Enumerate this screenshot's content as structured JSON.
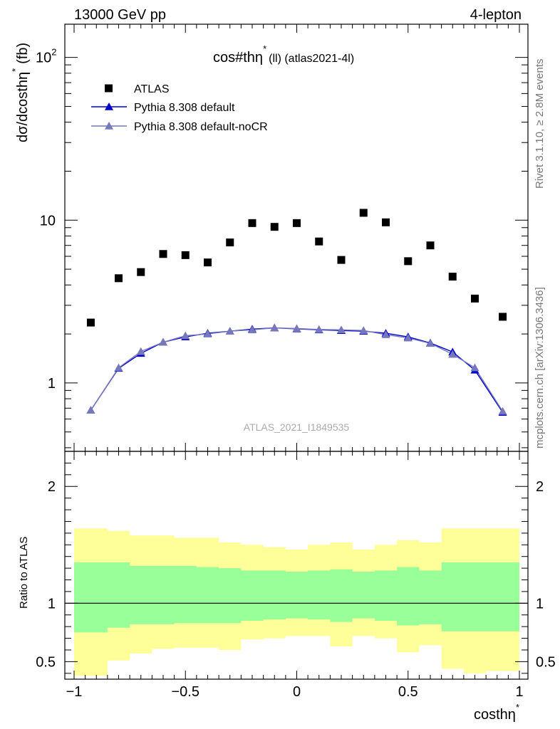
{
  "header": {
    "left": "13000 GeV pp",
    "right": "4-lepton"
  },
  "side_labels": {
    "rivet": "Rivet 3.1.10, ≥ 2.8M events",
    "mcplots": "mcplots.cern.ch [arXiv:1306.3436]"
  },
  "chart_data": [
    {
      "type": "scatter",
      "title_main": "cos#thη",
      "title_sup": "*",
      "title_tail": "(ll) (atlas2021-4l)",
      "ylabel_main": "dσ/dcosthη",
      "ylabel_sup": "*",
      "ylabel_tail": "(fb)",
      "watermark": "ATLAS_2021_I1849535",
      "yscale": "log",
      "xlim": [
        -1.0,
        1.0
      ],
      "ylim": [
        0.38,
        160
      ],
      "yticks": [
        {
          "v": 1,
          "label": "1"
        },
        {
          "v": 10,
          "label": "10"
        },
        {
          "v": 100,
          "label": "10",
          "sup": "2"
        }
      ],
      "legend": "top-left",
      "x": [
        -0.925,
        -0.8,
        -0.7,
        -0.6,
        -0.5,
        -0.4,
        -0.3,
        -0.2,
        -0.1,
        0.0,
        0.1,
        0.2,
        0.3,
        0.4,
        0.5,
        0.6,
        0.7,
        0.8,
        0.925
      ],
      "series": [
        {
          "name": "ATLAS",
          "marker": "square",
          "color": "#000000",
          "values": [
            2.35,
            4.4,
            4.8,
            6.2,
            6.1,
            5.5,
            7.3,
            9.6,
            9.1,
            9.6,
            7.4,
            5.7,
            11.1,
            9.7,
            5.6,
            7.0,
            4.5,
            3.3,
            2.55
          ]
        },
        {
          "name": "Pythia 8.308 default",
          "marker": "triangle",
          "color": "#0000cc",
          "values": [
            0.68,
            1.23,
            1.52,
            1.78,
            1.92,
            2.02,
            2.08,
            2.14,
            2.18,
            2.15,
            2.12,
            2.1,
            2.08,
            2.02,
            1.92,
            1.76,
            1.55,
            1.2,
            0.66
          ]
        },
        {
          "name": "Pythia 8.308 default-noCR",
          "marker": "triangle",
          "color": "#7777bb",
          "values": [
            0.68,
            1.24,
            1.56,
            1.78,
            1.95,
            2.0,
            2.08,
            2.12,
            2.18,
            2.16,
            2.13,
            2.12,
            2.1,
            1.98,
            1.89,
            1.75,
            1.5,
            1.24,
            0.67
          ]
        }
      ]
    },
    {
      "type": "area",
      "ylabel": "Ratio to ATLAS",
      "xlabel_main": "costhη",
      "xlabel_sup": "*",
      "xlim": [
        -1.0,
        1.0
      ],
      "ylim": [
        0.35,
        2.3
      ],
      "yticks": [
        {
          "v": 0.5,
          "label": "0.5"
        },
        {
          "v": 1,
          "label": "1"
        },
        {
          "v": 2,
          "label": "2"
        }
      ],
      "xticks": [
        {
          "v": -1,
          "label": "−1"
        },
        {
          "v": -0.5,
          "label": "−0.5"
        },
        {
          "v": 0,
          "label": "0"
        },
        {
          "v": 0.5,
          "label": "0.5"
        },
        {
          "v": 1,
          "label": "1"
        }
      ],
      "reference": 1.0,
      "bin_edges": [
        -1.0,
        -0.85,
        -0.75,
        -0.65,
        -0.55,
        -0.45,
        -0.35,
        -0.25,
        -0.15,
        -0.05,
        0.05,
        0.15,
        0.25,
        0.35,
        0.45,
        0.55,
        0.65,
        0.75,
        0.85,
        1.0
      ],
      "yellow_band": {
        "color": "#ffff99",
        "upper": [
          1.64,
          1.62,
          1.58,
          1.58,
          1.56,
          1.56,
          1.52,
          1.5,
          1.48,
          1.46,
          1.5,
          1.52,
          1.46,
          1.5,
          1.54,
          1.52,
          1.64,
          1.64,
          1.64
        ],
        "lower": [
          0.38,
          0.51,
          0.57,
          0.61,
          0.62,
          0.62,
          0.6,
          0.69,
          0.7,
          0.72,
          0.72,
          0.63,
          0.72,
          0.7,
          0.58,
          0.64,
          0.44,
          0.4,
          0.42
        ]
      },
      "green_band": {
        "color": "#99ff99",
        "upper": [
          1.35,
          1.35,
          1.32,
          1.32,
          1.32,
          1.31,
          1.3,
          1.28,
          1.28,
          1.27,
          1.28,
          1.29,
          1.27,
          1.28,
          1.31,
          1.28,
          1.35,
          1.35,
          1.35
        ],
        "lower": [
          0.75,
          0.79,
          0.82,
          0.82,
          0.83,
          0.83,
          0.83,
          0.85,
          0.86,
          0.87,
          0.86,
          0.84,
          0.87,
          0.85,
          0.81,
          0.82,
          0.76,
          0.76,
          0.76
        ]
      }
    }
  ]
}
